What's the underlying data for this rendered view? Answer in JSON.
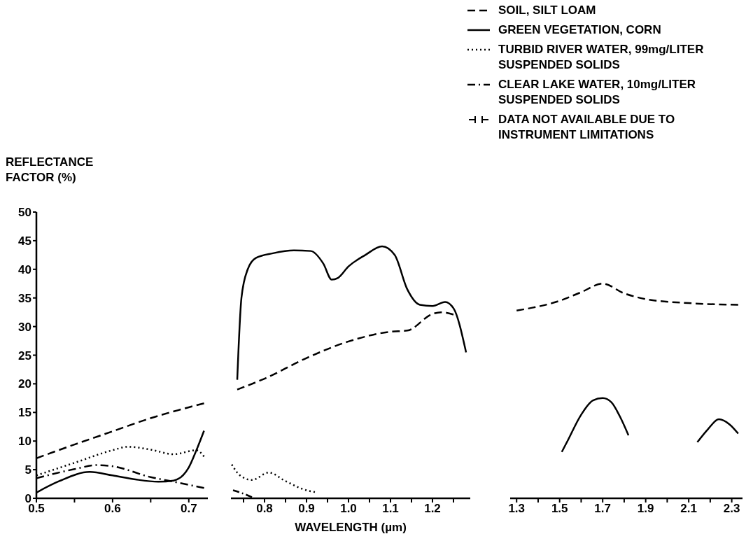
{
  "chart_data": [
    {
      "type": "line",
      "ylabel": "REFLECTANCE FACTOR (%)",
      "xlim": [
        0.5,
        0.725
      ],
      "xticks": [
        0.5,
        {
          "value": 0.55,
          "label": null
        },
        0.6,
        {
          "value": 0.65,
          "label": null
        },
        0.7
      ],
      "ylim": [
        0,
        50
      ],
      "yticks": [
        0,
        5,
        10,
        15,
        20,
        25,
        30,
        35,
        40,
        45,
        50
      ],
      "legend": "top right",
      "annotations": [
        "DATA NOT AVAILABLE DUE TO INSTRUMENT LIMITATIONS"
      ],
      "series": [
        {
          "name": "SOIL, SILT LOAM",
          "color": "#000000",
          "line_style": "dashed",
          "x": [
            0.5,
            0.55,
            0.6,
            0.65,
            0.7,
            0.72
          ],
          "values": [
            7,
            9.4,
            11.7,
            14,
            15.9,
            16.6
          ]
        },
        {
          "name": "GREEN VEGETATION, CORN",
          "color": "#000000",
          "line_style": "solid",
          "x": [
            0.5,
            0.53,
            0.57,
            0.6,
            0.63,
            0.66,
            0.68,
            0.7,
            0.71,
            0.72
          ],
          "values": [
            1,
            3,
            4.6,
            4,
            3.3,
            2.9,
            3.1,
            5.4,
            8.4,
            11.8
          ]
        },
        {
          "name": "TURBID RIVER WATER, 99mg/LITER SUSPENDED SOLIDS",
          "color": "#000000",
          "line_style": "dotted",
          "x": [
            0.5,
            0.55,
            0.6,
            0.62,
            0.65,
            0.68,
            0.71,
            0.72
          ],
          "values": [
            4,
            6.2,
            8.4,
            9,
            8.5,
            7.7,
            8.4,
            7.3
          ]
        },
        {
          "name": "CLEAR LAKE WATER, 10mg/LITER SUSPENDED SOLIDS",
          "color": "#000000",
          "line_style": "dashdot",
          "x": [
            0.5,
            0.55,
            0.58,
            0.6,
            0.65,
            0.68,
            0.72
          ],
          "values": [
            3.5,
            5.1,
            5.8,
            5.6,
            3.7,
            2.9,
            1.8
          ]
        }
      ]
    },
    {
      "type": "line",
      "xlabel": "WAVELENGTH (µm)",
      "xlim": [
        0.72,
        1.29
      ],
      "xticks": [
        {
          "value": 0.75,
          "label": null
        },
        0.8,
        {
          "value": 0.85,
          "label": null
        },
        0.9,
        {
          "value": 0.95,
          "label": null
        },
        {
          "value": 1,
          "label": "1.0"
        },
        {
          "value": 1.05,
          "label": null
        },
        1.1,
        {
          "value": 1.15,
          "label": null
        },
        1.2,
        {
          "value": 1.25,
          "label": null
        }
      ],
      "ylim": [
        0,
        50
      ],
      "tick_labels": "x",
      "series": [
        {
          "color": "#000000",
          "line_style": "dashed",
          "x": [
            0.735,
            0.8,
            0.9,
            1,
            1.1,
            1.14,
            1.2,
            1.22,
            1.25
          ],
          "values": [
            19,
            20.9,
            24.5,
            27.4,
            29.1,
            29.3,
            32.2,
            32.5,
            32.1
          ]
        },
        {
          "color": "#000000",
          "line_style": "solid",
          "x": [
            0.735,
            0.745,
            0.76,
            0.78,
            0.82,
            0.87,
            0.91,
            0.94,
            0.96,
            0.975,
            1,
            1.04,
            1.08,
            1.11,
            1.14,
            1.17,
            1.2,
            1.23,
            1.25,
            1.28
          ],
          "values": [
            20.7,
            35,
            40,
            42,
            42.8,
            43.3,
            43.2,
            41,
            38.2,
            38.5,
            40.5,
            42.5,
            44,
            42.5,
            36.5,
            33.8,
            33.6,
            34.3,
            33.2,
            25.5
          ]
        },
        {
          "color": "#000000",
          "line_style": "dotted",
          "x": [
            0.722,
            0.74,
            0.77,
            0.81,
            0.85,
            0.9,
            0.92
          ],
          "values": [
            5.9,
            4.1,
            3.2,
            4.5,
            3,
            1.4,
            1.1
          ]
        },
        {
          "color": "#000000",
          "line_style": "dashdot",
          "x": [
            0.725,
            0.75,
            0.77
          ],
          "values": [
            1.4,
            0.8,
            0.2
          ]
        }
      ]
    },
    {
      "type": "line",
      "xlim": [
        1.27,
        2.35
      ],
      "xticks": [
        1.3,
        {
          "value": 1.4,
          "label": null
        },
        1.5,
        {
          "value": 1.6,
          "label": null
        },
        1.7,
        {
          "value": 1.8,
          "label": null
        },
        1.9,
        {
          "value": 2,
          "label": null
        },
        2.1,
        {
          "value": 2.2,
          "label": null
        },
        2.3
      ],
      "ylim": [
        0,
        50
      ],
      "tick_labels": "x",
      "series": [
        {
          "color": "#000000",
          "line_style": "dashed",
          "x": [
            1.3,
            1.5,
            1.6,
            1.7,
            1.8,
            1.9,
            2.1,
            2.33
          ],
          "values": [
            32.8,
            34.5,
            36,
            37.5,
            35.8,
            34.8,
            34.1,
            33.8
          ]
        },
        {
          "color": "#000000",
          "line_style": "solid",
          "x": [
            1.51,
            1.535,
            1.6,
            1.655,
            1.7,
            1.74,
            1.78,
            1.82,
            2,
            2.14,
            2.19,
            2.24,
            2.29,
            2.33
          ],
          "values": [
            8.1,
            9.9,
            14.6,
            17.1,
            17.5,
            16.8,
            14.3,
            11,
            null,
            9.8,
            12.1,
            13.8,
            12.9,
            11.3
          ]
        }
      ]
    }
  ]
}
